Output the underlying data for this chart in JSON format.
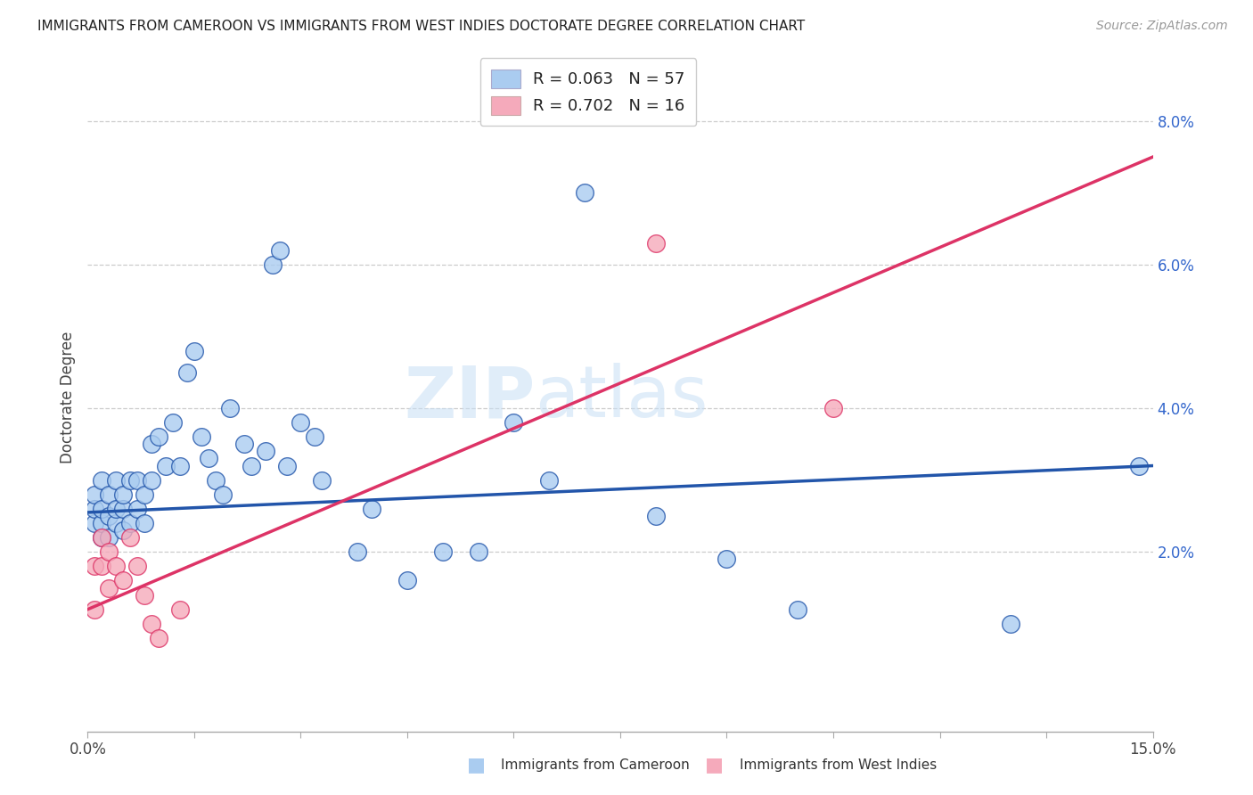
{
  "title": "IMMIGRANTS FROM CAMEROON VS IMMIGRANTS FROM WEST INDIES DOCTORATE DEGREE CORRELATION CHART",
  "source": "Source: ZipAtlas.com",
  "ylabel": "Doctorate Degree",
  "xlim": [
    0,
    0.15
  ],
  "ylim": [
    -0.005,
    0.088
  ],
  "label1": "Immigrants from Cameroon",
  "label2": "Immigrants from West Indies",
  "color1": "#aaccf0",
  "color2": "#f5aabb",
  "line_color1": "#2255aa",
  "line_color2": "#dd3366",
  "watermark_zip": "ZIP",
  "watermark_atlas": "atlas",
  "legend_text1": "R = 0.063   N = 57",
  "legend_text2": "R = 0.702   N = 16",
  "blue_line_x": [
    0.0,
    0.15
  ],
  "blue_line_y": [
    0.0255,
    0.032
  ],
  "red_line_x": [
    0.0,
    0.15
  ],
  "red_line_y": [
    0.012,
    0.075
  ],
  "cameroon_x": [
    0.001,
    0.001,
    0.001,
    0.002,
    0.002,
    0.002,
    0.002,
    0.003,
    0.003,
    0.003,
    0.004,
    0.004,
    0.004,
    0.005,
    0.005,
    0.005,
    0.006,
    0.006,
    0.007,
    0.007,
    0.008,
    0.008,
    0.009,
    0.009,
    0.01,
    0.011,
    0.012,
    0.013,
    0.014,
    0.015,
    0.016,
    0.017,
    0.018,
    0.019,
    0.02,
    0.022,
    0.023,
    0.025,
    0.026,
    0.027,
    0.028,
    0.03,
    0.032,
    0.033,
    0.038,
    0.04,
    0.045,
    0.05,
    0.055,
    0.06,
    0.065,
    0.07,
    0.08,
    0.09,
    0.1,
    0.13,
    0.148
  ],
  "cameroon_y": [
    0.024,
    0.026,
    0.028,
    0.022,
    0.024,
    0.026,
    0.03,
    0.022,
    0.025,
    0.028,
    0.024,
    0.026,
    0.03,
    0.023,
    0.026,
    0.028,
    0.024,
    0.03,
    0.026,
    0.03,
    0.024,
    0.028,
    0.03,
    0.035,
    0.036,
    0.032,
    0.038,
    0.032,
    0.045,
    0.048,
    0.036,
    0.033,
    0.03,
    0.028,
    0.04,
    0.035,
    0.032,
    0.034,
    0.06,
    0.062,
    0.032,
    0.038,
    0.036,
    0.03,
    0.02,
    0.026,
    0.016,
    0.02,
    0.02,
    0.038,
    0.03,
    0.07,
    0.025,
    0.019,
    0.012,
    0.01,
    0.032
  ],
  "westindies_x": [
    0.001,
    0.001,
    0.002,
    0.002,
    0.003,
    0.003,
    0.004,
    0.005,
    0.006,
    0.007,
    0.008,
    0.009,
    0.01,
    0.013,
    0.08,
    0.105
  ],
  "westindies_y": [
    0.012,
    0.018,
    0.018,
    0.022,
    0.015,
    0.02,
    0.018,
    0.016,
    0.022,
    0.018,
    0.014,
    0.01,
    0.008,
    0.012,
    0.063,
    0.04
  ]
}
